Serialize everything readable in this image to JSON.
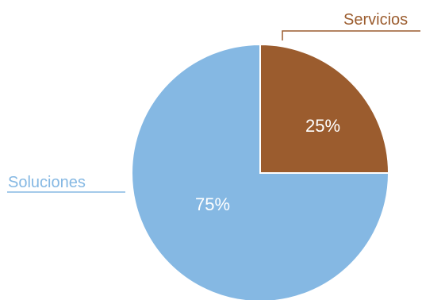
{
  "chart_data": {
    "type": "pie",
    "slices": [
      {
        "label": "Servicios",
        "value": 25,
        "display": "25%",
        "color": "#9b5c2e"
      },
      {
        "label": "Soluciones",
        "value": 75,
        "display": "75%",
        "color": "#85b8e3"
      }
    ],
    "title": "",
    "legend": "callout labels outside slices"
  }
}
